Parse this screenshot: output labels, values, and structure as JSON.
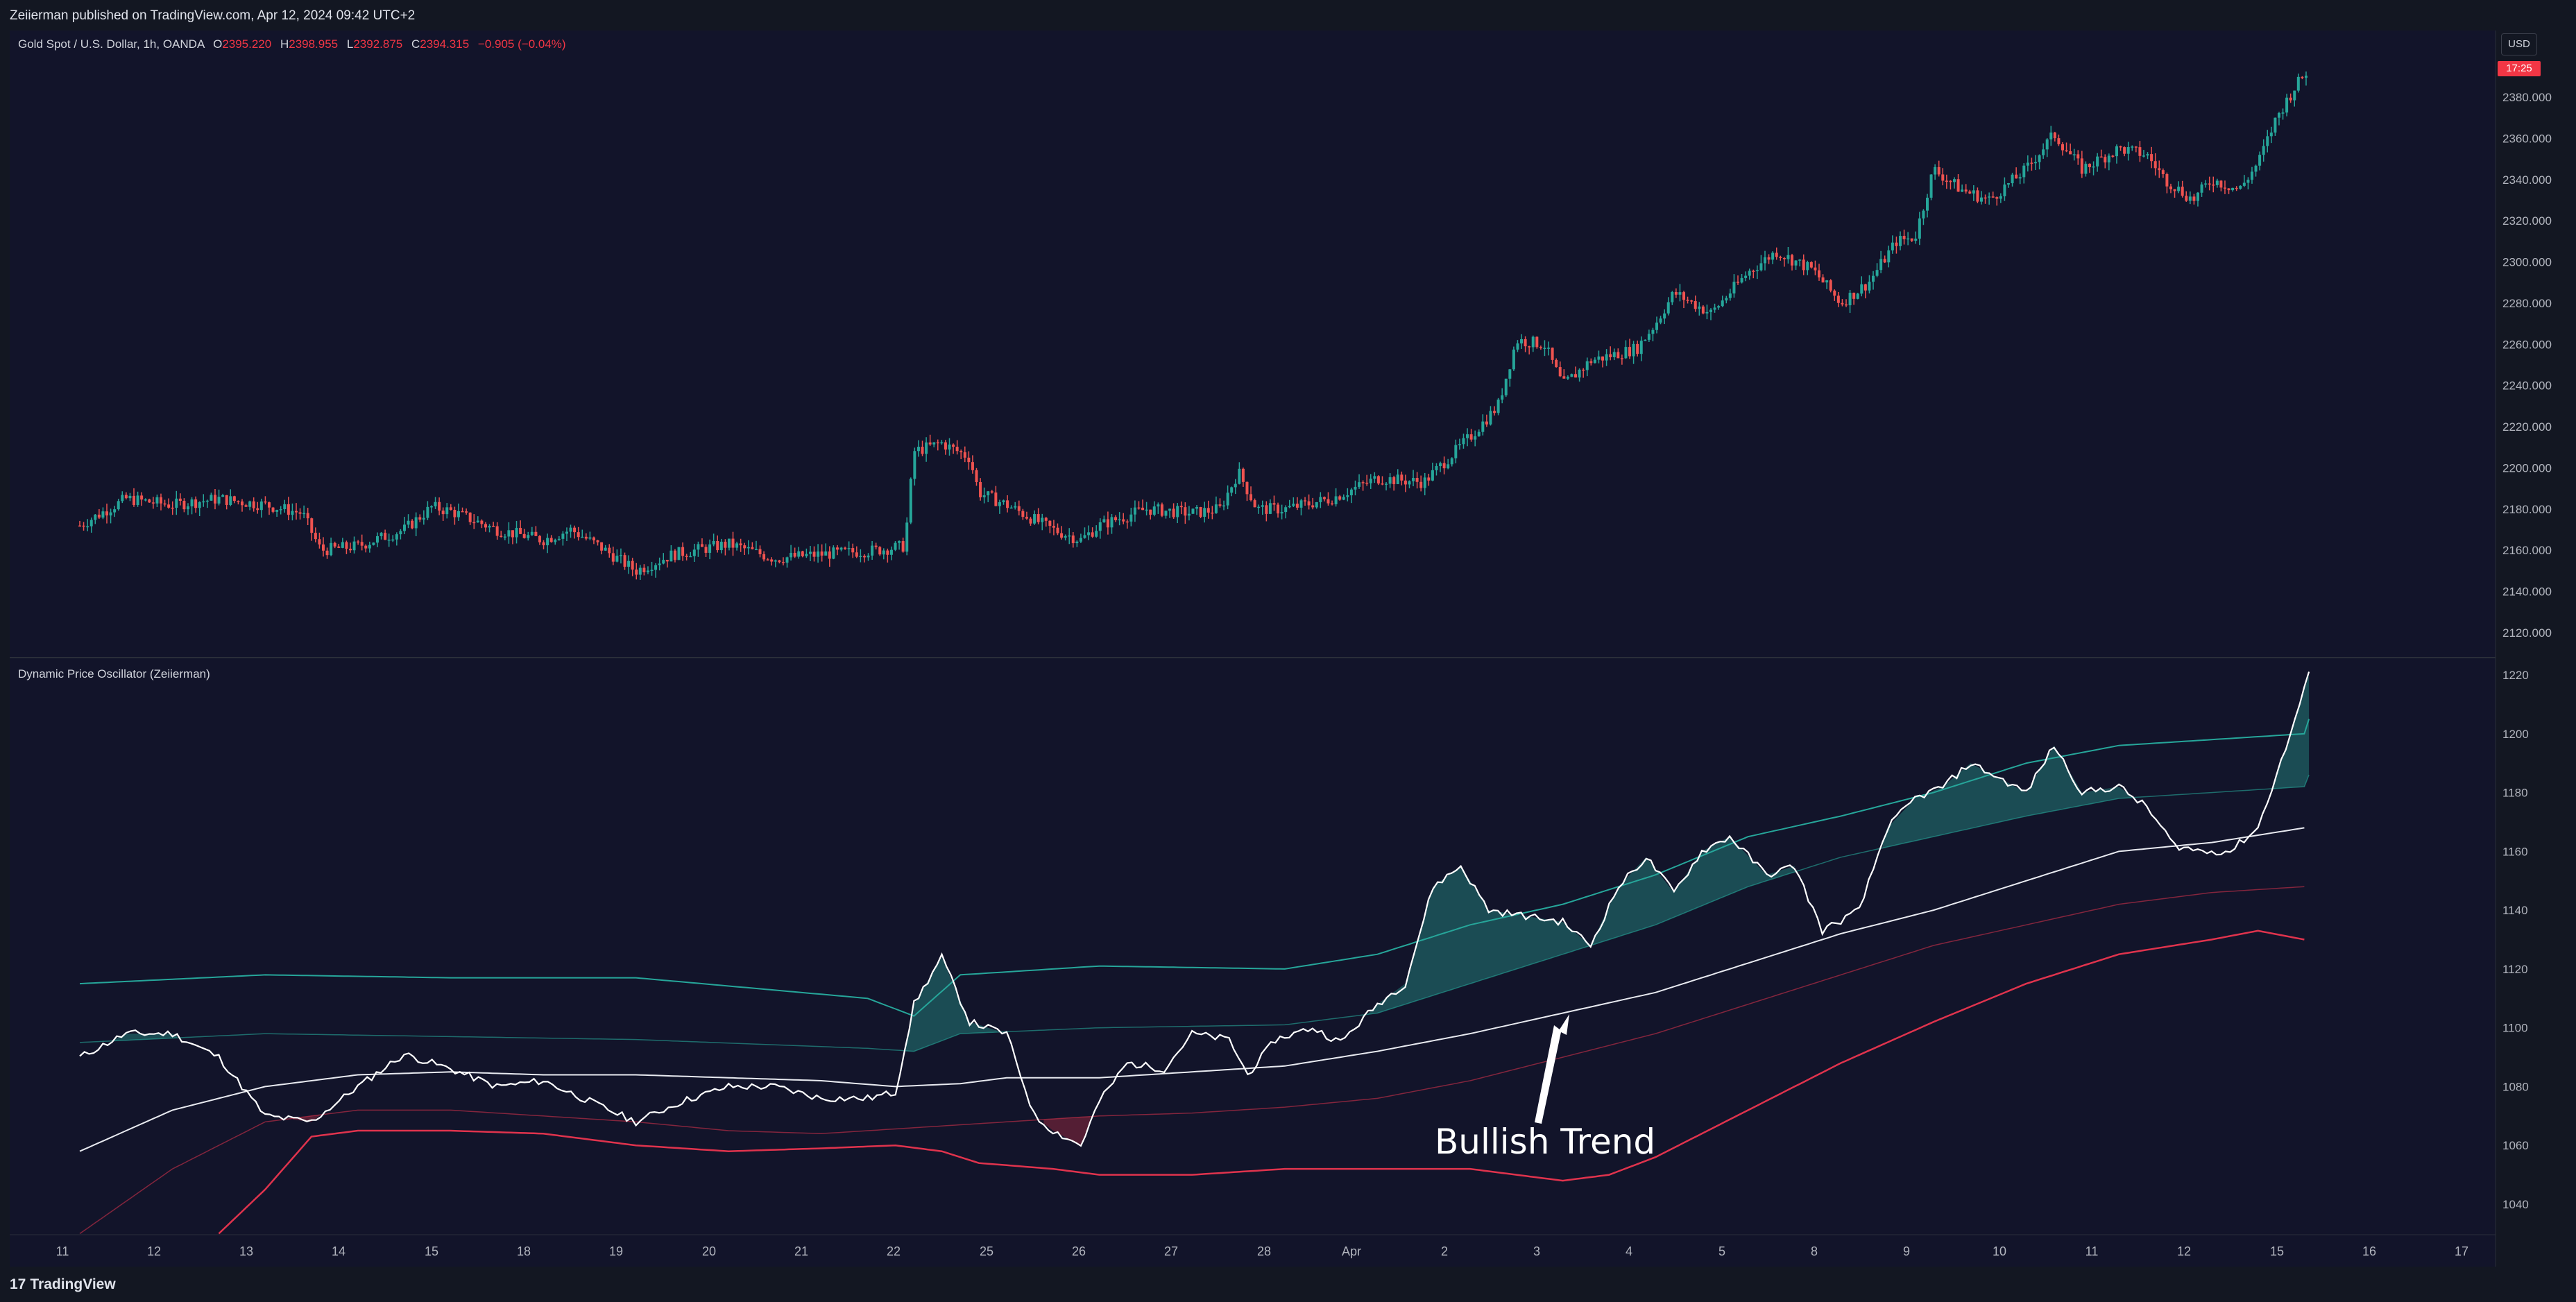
{
  "header": {
    "published": "Zeiierman published on TradingView.com, Apr 12, 2024 09:42 UTC+2"
  },
  "legend": {
    "symbol": "Gold Spot / U.S. Dollar, 1h, OANDA",
    "open_label": "O",
    "open": "2395.220",
    "high_label": "H",
    "high": "2398.955",
    "low_label": "L",
    "low": "2392.875",
    "close_label": "C",
    "close": "2394.315",
    "change": "−0.905 (−0.04%)"
  },
  "currency": "USD",
  "countdown": "17:25",
  "oscillator_title": "Dynamic Price Oscillator (Zeiierman)",
  "annotation": "Bullish Trend",
  "footer": {
    "brand": "TradingView",
    "logo": "17"
  },
  "colors": {
    "up": "#26a69a",
    "down": "#ef5350",
    "upper_band": "#26a69a",
    "lower_band": "#e0334d",
    "osc": "#ffffff",
    "fill_up": "#1f5f63",
    "fill_down": "#6b2238"
  },
  "chart_data": [
    {
      "type": "candlestick",
      "title": "Gold Spot / U.S. Dollar, 1h, OANDA",
      "ylim": [
        2105,
        2400
      ],
      "y_ticks": [
        "2380.000",
        "2360.000",
        "2340.000",
        "2320.000",
        "2300.000",
        "2280.000",
        "2260.000",
        "2240.000",
        "2220.000",
        "2200.000",
        "2180.000",
        "2160.000",
        "2140.000",
        "2120.000"
      ],
      "x_ticks": [
        "11",
        "12",
        "13",
        "14",
        "15",
        "18",
        "19",
        "20",
        "21",
        "22",
        "25",
        "26",
        "27",
        "28",
        "Apr",
        "2",
        "3",
        "4",
        "5",
        "8",
        "9",
        "10",
        "11",
        "12",
        "15",
        "16",
        "17"
      ],
      "close_path": [
        [
          0,
          2172
        ],
        [
          0.5,
          2185
        ],
        [
          1,
          2182
        ],
        [
          1.5,
          2185
        ],
        [
          2,
          2182
        ],
        [
          2.4,
          2178
        ],
        [
          2.6,
          2160
        ],
        [
          3,
          2162
        ],
        [
          3.5,
          2170
        ],
        [
          3.8,
          2181
        ],
        [
          4,
          2179
        ],
        [
          4.5,
          2170
        ],
        [
          5,
          2165
        ],
        [
          5.3,
          2170
        ],
        [
          5.6,
          2162
        ],
        [
          6,
          2150
        ],
        [
          6.4,
          2158
        ],
        [
          7,
          2163
        ],
        [
          7.5,
          2156
        ],
        [
          8,
          2158
        ],
        [
          8.6,
          2160
        ],
        [
          8.9,
          2162
        ],
        [
          9.0,
          2208
        ],
        [
          9.3,
          2212
        ],
        [
          9.6,
          2205
        ],
        [
          9.7,
          2188
        ],
        [
          10,
          2182
        ],
        [
          10.5,
          2170
        ],
        [
          10.8,
          2165
        ],
        [
          11,
          2172
        ],
        [
          11.5,
          2180
        ],
        [
          12,
          2178
        ],
        [
          12.3,
          2180
        ],
        [
          12.5,
          2198
        ],
        [
          12.7,
          2180
        ],
        [
          13,
          2180
        ],
        [
          13.5,
          2185
        ],
        [
          14,
          2195
        ],
        [
          14.5,
          2193
        ],
        [
          15,
          2215
        ],
        [
          15.3,
          2230
        ],
        [
          15.5,
          2262
        ],
        [
          15.8,
          2260
        ],
        [
          16,
          2240
        ],
        [
          16.3,
          2252
        ],
        [
          16.8,
          2258
        ],
        [
          17,
          2270
        ],
        [
          17.2,
          2285
        ],
        [
          17.6,
          2275
        ],
        [
          18,
          2295
        ],
        [
          18.3,
          2305
        ],
        [
          18.7,
          2296
        ],
        [
          19,
          2280
        ],
        [
          19.3,
          2290
        ],
        [
          19.6,
          2310
        ],
        [
          19.8,
          2312
        ],
        [
          20,
          2345
        ],
        [
          20.3,
          2335
        ],
        [
          20.6,
          2330
        ],
        [
          21,
          2345
        ],
        [
          21.3,
          2362
        ],
        [
          21.6,
          2345
        ],
        [
          22,
          2355
        ],
        [
          22.3,
          2352
        ],
        [
          22.5,
          2340
        ],
        [
          22.8,
          2330
        ],
        [
          23,
          2340
        ],
        [
          23.3,
          2335
        ],
        [
          23.5,
          2348
        ],
        [
          23.7,
          2370
        ],
        [
          23.9,
          2385
        ],
        [
          24.05,
          2394
        ]
      ],
      "current_close": 2394.315
    },
    {
      "type": "line",
      "title": "Dynamic Price Oscillator (Zeiierman)",
      "ylim": [
        1030,
        1225
      ],
      "y_ticks": [
        "1220",
        "1200",
        "1180",
        "1160",
        "1140",
        "1120",
        "1100",
        "1080",
        "1060",
        "1040"
      ],
      "series": [
        {
          "name": "Oscillator",
          "points": [
            [
              0,
              1090
            ],
            [
              0.5,
              1098
            ],
            [
              1,
              1098
            ],
            [
              1.5,
              1090
            ],
            [
              2,
              1070
            ],
            [
              2.5,
              1068
            ],
            [
              3,
              1080
            ],
            [
              3.5,
              1091
            ],
            [
              4,
              1086
            ],
            [
              4.5,
              1080
            ],
            [
              5,
              1082
            ],
            [
              5.5,
              1075
            ],
            [
              6,
              1068
            ],
            [
              6.5,
              1075
            ],
            [
              7,
              1080
            ],
            [
              7.5,
              1080
            ],
            [
              8,
              1076
            ],
            [
              8.5,
              1076
            ],
            [
              8.8,
              1078
            ],
            [
              9,
              1108
            ],
            [
              9.3,
              1124
            ],
            [
              9.6,
              1102
            ],
            [
              10,
              1098
            ],
            [
              10.3,
              1070
            ],
            [
              10.5,
              1065
            ],
            [
              10.8,
              1060
            ],
            [
              11,
              1075
            ],
            [
              11.3,
              1088
            ],
            [
              11.7,
              1086
            ],
            [
              12,
              1098
            ],
            [
              12.4,
              1096
            ],
            [
              12.6,
              1084
            ],
            [
              12.9,
              1096
            ],
            [
              13.3,
              1100
            ],
            [
              13.6,
              1095
            ],
            [
              14,
              1108
            ],
            [
              14.3,
              1115
            ],
            [
              14.6,
              1148
            ],
            [
              14.9,
              1155
            ],
            [
              15.2,
              1140
            ],
            [
              15.6,
              1138
            ],
            [
              16,
              1136
            ],
            [
              16.3,
              1128
            ],
            [
              16.6,
              1148
            ],
            [
              16.9,
              1158
            ],
            [
              17.2,
              1146
            ],
            [
              17.5,
              1160
            ],
            [
              17.8,
              1165
            ],
            [
              18.2,
              1152
            ],
            [
              18.5,
              1155
            ],
            [
              18.8,
              1133
            ],
            [
              19.2,
              1140
            ],
            [
              19.5,
              1168
            ],
            [
              19.8,
              1178
            ],
            [
              20.1,
              1182
            ],
            [
              20.4,
              1190
            ],
            [
              20.7,
              1185
            ],
            [
              21,
              1180
            ],
            [
              21.3,
              1196
            ],
            [
              21.6,
              1180
            ],
            [
              22,
              1182
            ],
            [
              22.3,
              1175
            ],
            [
              22.6,
              1162
            ],
            [
              22.9,
              1160
            ],
            [
              23.2,
              1160
            ],
            [
              23.5,
              1168
            ],
            [
              23.8,
              1195
            ],
            [
              24.05,
              1220
            ]
          ]
        },
        {
          "name": "Upper Band",
          "points": [
            [
              0,
              1115
            ],
            [
              2,
              1118
            ],
            [
              4,
              1117
            ],
            [
              6,
              1117
            ],
            [
              8.5,
              1110
            ],
            [
              9,
              1104
            ],
            [
              9.5,
              1118
            ],
            [
              11,
              1121
            ],
            [
              13,
              1120
            ],
            [
              14,
              1125
            ],
            [
              15,
              1135
            ],
            [
              16,
              1142
            ],
            [
              17,
              1152
            ],
            [
              18,
              1165
            ],
            [
              19,
              1172
            ],
            [
              20,
              1180
            ],
            [
              21,
              1190
            ],
            [
              22,
              1196
            ],
            [
              23,
              1198
            ],
            [
              24,
              1200
            ],
            [
              24.05,
              1205
            ]
          ]
        },
        {
          "name": "Upper Mid",
          "points": [
            [
              0,
              1095
            ],
            [
              2,
              1098
            ],
            [
              4,
              1097
            ],
            [
              6,
              1096
            ],
            [
              8.5,
              1093
            ],
            [
              9,
              1092
            ],
            [
              9.5,
              1098
            ],
            [
              11,
              1100
            ],
            [
              13,
              1101
            ],
            [
              14,
              1105
            ],
            [
              15,
              1115
            ],
            [
              16,
              1125
            ],
            [
              17,
              1135
            ],
            [
              18,
              1148
            ],
            [
              19,
              1158
            ],
            [
              20,
              1165
            ],
            [
              21,
              1172
            ],
            [
              22,
              1178
            ],
            [
              23,
              1180
            ],
            [
              24,
              1182
            ],
            [
              24.05,
              1186
            ]
          ]
        },
        {
          "name": "Basis",
          "points": [
            [
              0,
              1058
            ],
            [
              1,
              1072
            ],
            [
              2,
              1080
            ],
            [
              3,
              1084
            ],
            [
              4,
              1085
            ],
            [
              5,
              1084
            ],
            [
              6,
              1084
            ],
            [
              7,
              1083
            ],
            [
              8,
              1082
            ],
            [
              8.8,
              1080
            ],
            [
              9.5,
              1081
            ],
            [
              10,
              1083
            ],
            [
              11,
              1083
            ],
            [
              12,
              1085
            ],
            [
              13,
              1087
            ],
            [
              14,
              1092
            ],
            [
              15,
              1098
            ],
            [
              16,
              1105
            ],
            [
              17,
              1112
            ],
            [
              18,
              1122
            ],
            [
              19,
              1132
            ],
            [
              20,
              1140
            ],
            [
              21,
              1150
            ],
            [
              22,
              1160
            ],
            [
              23,
              1163
            ],
            [
              24,
              1168
            ]
          ]
        },
        {
          "name": "Lower Mid",
          "points": [
            [
              0,
              1030
            ],
            [
              1,
              1052
            ],
            [
              2,
              1068
            ],
            [
              3,
              1072
            ],
            [
              4,
              1072
            ],
            [
              5,
              1070
            ],
            [
              6,
              1068
            ],
            [
              7,
              1065
            ],
            [
              8,
              1064
            ],
            [
              9,
              1066
            ],
            [
              10,
              1068
            ],
            [
              11,
              1070
            ],
            [
              12,
              1071
            ],
            [
              13,
              1073
            ],
            [
              14,
              1076
            ],
            [
              15,
              1082
            ],
            [
              16,
              1090
            ],
            [
              17,
              1098
            ],
            [
              18,
              1108
            ],
            [
              19,
              1118
            ],
            [
              20,
              1128
            ],
            [
              21,
              1135
            ],
            [
              22,
              1142
            ],
            [
              23,
              1146
            ],
            [
              24,
              1148
            ]
          ]
        },
        {
          "name": "Lower Band",
          "points": [
            [
              1.5,
              1030
            ],
            [
              2,
              1045
            ],
            [
              2.5,
              1063
            ],
            [
              3,
              1065
            ],
            [
              4,
              1065
            ],
            [
              5,
              1064
            ],
            [
              6,
              1060
            ],
            [
              7,
              1058
            ],
            [
              8,
              1059
            ],
            [
              8.8,
              1060
            ],
            [
              9.3,
              1058
            ],
            [
              9.7,
              1054
            ],
            [
              10.5,
              1052
            ],
            [
              11,
              1050
            ],
            [
              12,
              1050
            ],
            [
              13,
              1052
            ],
            [
              14,
              1052
            ],
            [
              15,
              1052
            ],
            [
              15.5,
              1050
            ],
            [
              16,
              1048
            ],
            [
              16.5,
              1050
            ],
            [
              17,
              1056
            ],
            [
              18,
              1072
            ],
            [
              19,
              1088
            ],
            [
              20,
              1102
            ],
            [
              21,
              1115
            ],
            [
              22,
              1125
            ],
            [
              23,
              1130
            ],
            [
              23.5,
              1133
            ],
            [
              24,
              1130
            ]
          ]
        }
      ]
    }
  ]
}
